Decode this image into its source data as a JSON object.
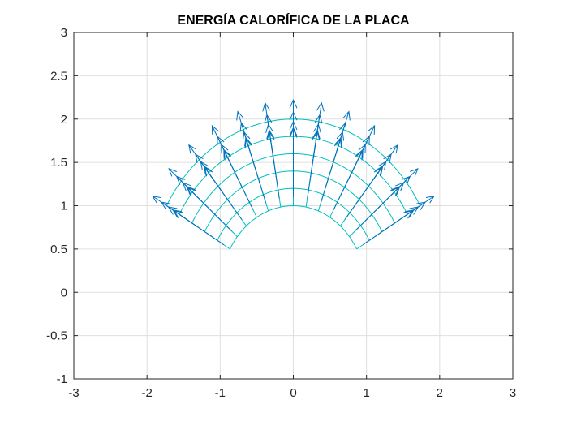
{
  "chart_data": {
    "type": "quiver",
    "title": "ENERGÍA CALORÍFICA DE LA PLACA",
    "xlabel": "",
    "ylabel": "",
    "xlim": [
      -3,
      3
    ],
    "ylim": [
      -1,
      3
    ],
    "x_ticks": [
      "-3",
      "-2",
      "-1",
      "0",
      "1",
      "2",
      "3"
    ],
    "y_ticks": [
      "-1",
      "-0.5",
      "0",
      "0.5",
      "1",
      "1.5",
      "2",
      "2.5",
      "3"
    ],
    "grid": true,
    "mesh": {
      "shape": "annular sector",
      "center": [
        0,
        0
      ],
      "radii": [
        1.0,
        1.2,
        1.4,
        1.6,
        1.8,
        2.0
      ],
      "angles_deg": [
        30,
        40,
        50,
        60,
        70,
        80,
        90,
        100,
        110,
        120,
        130,
        140,
        150
      ],
      "color": "#00BFBF"
    },
    "vector_field": {
      "direction": "radial outward",
      "arrow_color": "#0072BD",
      "sample_radii": [
        1.1,
        1.3,
        1.5,
        1.7,
        1.9
      ],
      "sample_angles_deg": [
        30,
        40,
        50,
        60,
        70,
        80,
        90,
        100,
        110,
        120,
        130,
        140,
        150
      ],
      "magnitudes": [
        0.78,
        0.6,
        0.47,
        0.38,
        0.32
      ]
    }
  }
}
